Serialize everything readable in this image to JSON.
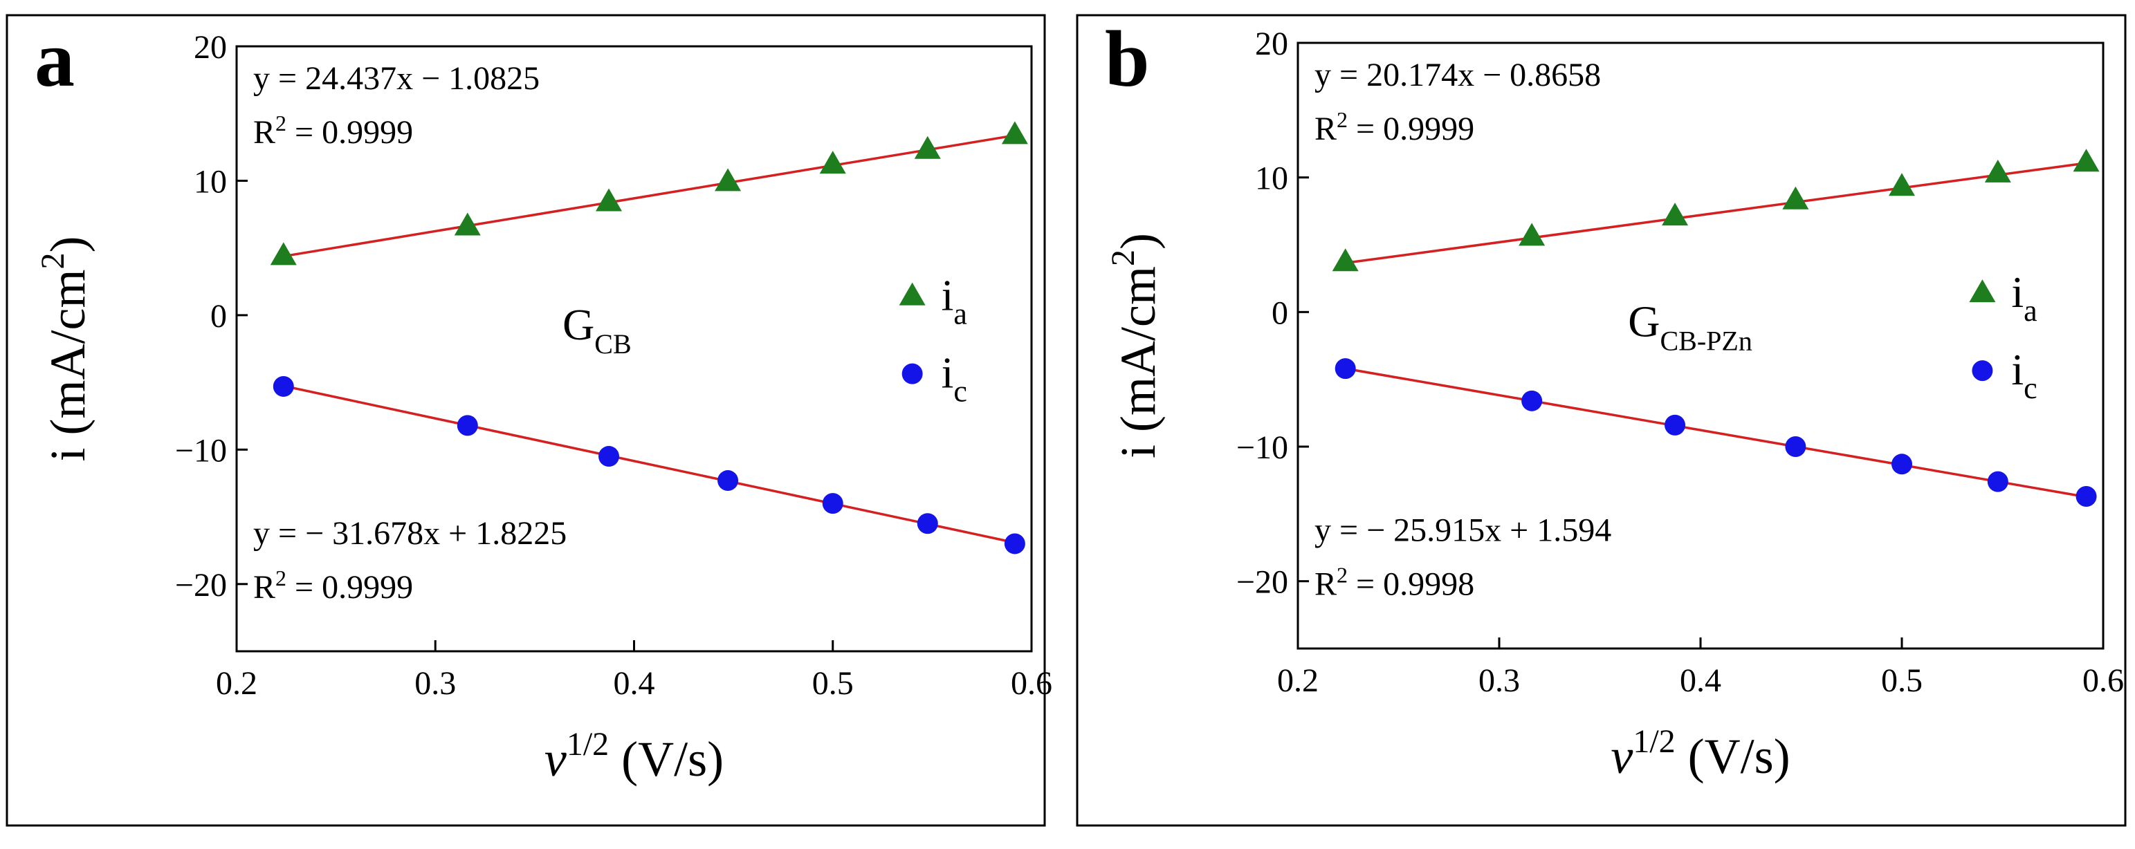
{
  "chart_data": [
    {
      "panel_label": "a",
      "type": "scatter",
      "xlabel_italic": "v",
      "xlabel_sup": "1/2",
      "xlabel_rest": "(V/s)",
      "ylabel_main": "i (mA/cm",
      "ylabel_sup": "2",
      "ylabel_end": ")",
      "xlim": [
        0.2,
        0.6
      ],
      "ylim": [
        -25,
        20
      ],
      "x_ticks": [
        0.2,
        0.3,
        0.4,
        0.5,
        0.6
      ],
      "x_tick_labels": [
        "0.2",
        "0.3",
        "0.4",
        "0.5",
        "0.6"
      ],
      "y_ticks": [
        -20,
        -10,
        0,
        10,
        20
      ],
      "y_tick_labels": [
        "−20",
        "−10",
        "0",
        "10",
        "20"
      ],
      "sample_main": "G",
      "sample_sub": "CB",
      "legend": [
        {
          "marker": "triangle",
          "main": "i",
          "sub": "a"
        },
        {
          "marker": "circle",
          "main": "i",
          "sub": "c"
        }
      ],
      "fit_anodic": {
        "equation": "y = 24.437x − 1.0825",
        "r2_prefix": "R",
        "r2_sup": "2",
        "r2_value": " = 0.9999"
      },
      "fit_cathodic": {
        "equation": "y = − 31.678x + 1.8225",
        "r2_prefix": "R",
        "r2_sup": "2",
        "r2_value": " = 0.9999"
      },
      "x": [
        0.2236,
        0.3162,
        0.3873,
        0.4472,
        0.5,
        0.5477,
        0.5916
      ],
      "series": [
        {
          "name": "i_a",
          "values": [
            4.4,
            6.6,
            8.4,
            9.9,
            11.2,
            12.3,
            13.4
          ],
          "slope": 24.437,
          "intercept": -1.0825
        },
        {
          "name": "i_c",
          "values": [
            -5.3,
            -8.2,
            -10.5,
            -12.3,
            -14.0,
            -15.5,
            -17.0
          ],
          "slope": -31.678,
          "intercept": 1.8225
        }
      ],
      "colors": {
        "i_a": "#1e7d1e",
        "i_c": "#1414e8",
        "fit": "#d42020"
      }
    },
    {
      "panel_label": "b",
      "type": "scatter",
      "xlabel_italic": "v",
      "xlabel_sup": "1/2",
      "xlabel_rest": "(V/s)",
      "ylabel_main": "i (mA/cm",
      "ylabel_sup": "2",
      "ylabel_end": ")",
      "xlim": [
        0.2,
        0.6
      ],
      "ylim": [
        -25,
        20
      ],
      "x_ticks": [
        0.2,
        0.3,
        0.4,
        0.5,
        0.6
      ],
      "x_tick_labels": [
        "0.2",
        "0.3",
        "0.4",
        "0.5",
        "0.6"
      ],
      "y_ticks": [
        -20,
        -10,
        0,
        10,
        20
      ],
      "y_tick_labels": [
        "−20",
        "−10",
        "0",
        "10",
        "20"
      ],
      "sample_main": "G",
      "sample_sub": "CB-PZn",
      "legend": [
        {
          "marker": "triangle",
          "main": "i",
          "sub": "a"
        },
        {
          "marker": "circle",
          "main": "i",
          "sub": "c"
        }
      ],
      "fit_anodic": {
        "equation": "y = 20.174x − 0.8658",
        "r2_prefix": "R",
        "r2_sup": "2",
        "r2_value": " = 0.9999"
      },
      "fit_cathodic": {
        "equation": "y = − 25.915x + 1.594",
        "r2_prefix": "R",
        "r2_sup": "2",
        "r2_value": " = 0.9998"
      },
      "x": [
        0.2236,
        0.3162,
        0.3873,
        0.4472,
        0.5,
        0.5477,
        0.5916
      ],
      "series": [
        {
          "name": "i_a",
          "values": [
            3.7,
            5.6,
            7.1,
            8.3,
            9.3,
            10.3,
            11.1
          ],
          "slope": 20.174,
          "intercept": -0.8658
        },
        {
          "name": "i_c",
          "values": [
            -4.2,
            -6.6,
            -8.4,
            -10.0,
            -11.3,
            -12.6,
            -13.7
          ],
          "slope": -25.915,
          "intercept": 1.594
        }
      ],
      "colors": {
        "i_a": "#1e7d1e",
        "i_c": "#1414e8",
        "fit": "#d42020"
      }
    }
  ]
}
